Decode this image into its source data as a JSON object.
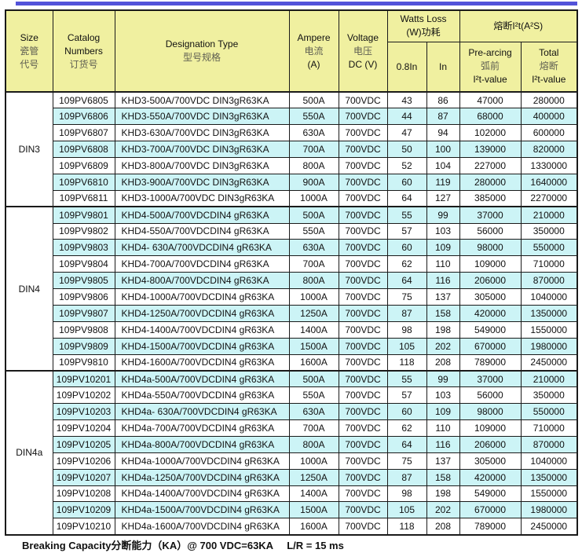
{
  "colors": {
    "topbar": "#5353d9",
    "header_bg": "#f0f0a0",
    "row_shaded_bg": "#ccf4f6",
    "border": "#1a1a1a"
  },
  "table": {
    "header": {
      "size": {
        "en": "Size",
        "zh1": "瓷管",
        "zh2": "代号"
      },
      "catalog": {
        "en1": "Catalog",
        "en2": "Numbers",
        "zh": "订货号"
      },
      "designation": {
        "en": "Designation Type",
        "zh": "型号规格"
      },
      "ampere": {
        "en": "Ampere",
        "zh": "电流",
        "unit": "(A)"
      },
      "voltage": {
        "en": "Voltage",
        "zh": "电压",
        "unit": "DC (V)"
      },
      "watts_group": {
        "en": "Watts Loss",
        "zh": "(W)功耗"
      },
      "watts_08": "0.8In",
      "watts_in": "In",
      "i2t_group": "熔断I²t(A²S)",
      "prearcing": {
        "en": "Pre-arcing",
        "zh": "弧前",
        "unit": "I²t-value"
      },
      "total": {
        "en": "Total",
        "zh": "熔断",
        "unit": "I²t-value"
      }
    },
    "sections": [
      {
        "size": "DIN3",
        "first_row_shaded": false,
        "rows": [
          [
            "109PV6805",
            "KHD3-500A/700VDC DIN3gR63KA",
            "500A",
            "700VDC",
            "43",
            "86",
            "47000",
            "280000"
          ],
          [
            "109PV6806",
            "KHD3-550A/700VDC DIN3gR63KA",
            "550A",
            "700VDC",
            "44",
            "87",
            "68000",
            "400000"
          ],
          [
            "109PV6807",
            "KHD3-630A/700VDC DIN3gR63KA",
            "630A",
            "700VDC",
            "47",
            "94",
            "102000",
            "600000"
          ],
          [
            "109PV6808",
            "KHD3-700A/700VDC DIN3gR63KA",
            "700A",
            "700VDC",
            "50",
            "100",
            "139000",
            "820000"
          ],
          [
            "109PV6809",
            "KHD3-800A/700VDC DIN3gR63KA",
            "800A",
            "700VDC",
            "52",
            "104",
            "227000",
            "1330000"
          ],
          [
            "109PV6810",
            "KHD3-900A/700VDC DIN3gR63KA",
            "900A",
            "700VDC",
            "60",
            "119",
            "280000",
            "1640000"
          ],
          [
            "109PV6811",
            "KHD3-1000A/700VDC DIN3gR63KA",
            "1000A",
            "700VDC",
            "64",
            "127",
            "385000",
            "2270000"
          ]
        ]
      },
      {
        "size": "DIN4",
        "first_row_shaded": true,
        "rows": [
          [
            "109PV9801",
            "KHD4-500A/700VDCDIN4 gR63KA",
            "500A",
            "700VDC",
            "55",
            "99",
            "37000",
            "210000"
          ],
          [
            "109PV9802",
            "KHD4-550A/700VDCDIN4 gR63KA",
            "550A",
            "700VDC",
            "57",
            "103",
            "56000",
            "350000"
          ],
          [
            "109PV9803",
            "KHD4- 630A/700VDCDIN4 gR63KA",
            "630A",
            "700VDC",
            "60",
            "109",
            "98000",
            "550000"
          ],
          [
            "109PV9804",
            "KHD4-700A/700VDCDIN4 gR63KA",
            "700A",
            "700VDC",
            "62",
            "110",
            "109000",
            "710000"
          ],
          [
            "109PV9805",
            "KHD4-800A/700VDCDIN4 gR63KA",
            "800A",
            "700VDC",
            "64",
            "116",
            "206000",
            "870000"
          ],
          [
            "109PV9806",
            "KHD4-1000A/700VDCDIN4 gR63KA",
            "1000A",
            "700VDC",
            "75",
            "137",
            "305000",
            "1040000"
          ],
          [
            "109PV9807",
            "KHD4-1250A/700VDCDIN4 gR63KA",
            "1250A",
            "700VDC",
            "87",
            "158",
            "420000",
            "1350000"
          ],
          [
            "109PV9808",
            "KHD4-1400A/700VDCDIN4 gR63KA",
            "1400A",
            "700VDC",
            "98",
            "198",
            "549000",
            "1550000"
          ],
          [
            "109PV9809",
            "KHD4-1500A/700VDCDIN4 gR63KA",
            "1500A",
            "700VDC",
            "105",
            "202",
            "670000",
            "1980000"
          ],
          [
            "109PV9810",
            "KHD4-1600A/700VDCDIN4 gR63KA",
            "1600A",
            "700VDC",
            "118",
            "208",
            "789000",
            "2450000"
          ]
        ]
      },
      {
        "size": "DIN4a",
        "first_row_shaded": true,
        "rows": [
          [
            "109PV10201",
            "KHD4a-500A/700VDCDIN4 gR63KA",
            "500A",
            "700VDC",
            "55",
            "99",
            "37000",
            "210000"
          ],
          [
            "109PV10202",
            "KHD4a-550A/700VDCDIN4 gR63KA",
            "550A",
            "700VDC",
            "57",
            "103",
            "56000",
            "350000"
          ],
          [
            "109PV10203",
            "KHD4a- 630A/700VDCDIN4 gR63KA",
            "630A",
            "700VDC",
            "60",
            "109",
            "98000",
            "550000"
          ],
          [
            "109PV10204",
            "KHD4a-700A/700VDCDIN4 gR63KA",
            "700A",
            "700VDC",
            "62",
            "110",
            "109000",
            "710000"
          ],
          [
            "109PV10205",
            "KHD4a-800A/700VDCDIN4 gR63KA",
            "800A",
            "700VDC",
            "64",
            "116",
            "206000",
            "870000"
          ],
          [
            "109PV10206",
            "KHD4a-1000A/700VDCDIN4 gR63KA",
            "1000A",
            "700VDC",
            "75",
            "137",
            "305000",
            "1040000"
          ],
          [
            "109PV10207",
            "KHD4a-1250A/700VDCDIN4 gR63KA",
            "1250A",
            "700VDC",
            "87",
            "158",
            "420000",
            "1350000"
          ],
          [
            "109PV10208",
            "KHD4a-1400A/700VDCDIN4 gR63KA",
            "1400A",
            "700VDC",
            "98",
            "198",
            "549000",
            "1550000"
          ],
          [
            "109PV10209",
            "KHD4a-1500A/700VDCDIN4 gR63KA",
            "1500A",
            "700VDC",
            "105",
            "202",
            "670000",
            "1980000"
          ],
          [
            "109PV10210",
            "KHD4a-1600A/700VDCDIN4 gR63KA",
            "1600A",
            "700VDC",
            "118",
            "208",
            "789000",
            "2450000"
          ]
        ]
      }
    ]
  },
  "footer": {
    "left": "Breaking Capacity分断能力（KA）@ 700 VDC=63KA",
    "right": "L/R = 15 ms"
  }
}
